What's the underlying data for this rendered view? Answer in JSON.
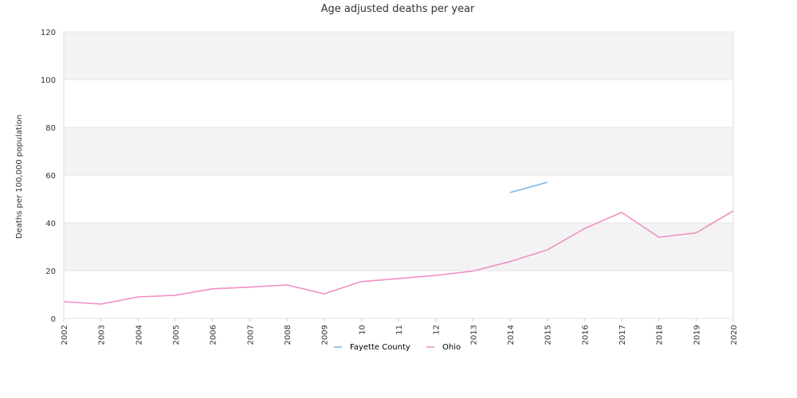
{
  "chart_data": {
    "type": "line",
    "title": "Age adjusted deaths per year",
    "xlabel": "",
    "ylabel": "Deaths per 100,000 population",
    "ylim": [
      0,
      120
    ],
    "yticks": [
      0,
      20,
      40,
      60,
      80,
      100,
      120
    ],
    "grid": "alternating horizontal bands",
    "legend_position": "bottom-center",
    "categories": [
      "2002",
      "2003",
      "2004",
      "2005",
      "2006",
      "2007",
      "2008",
      "2009",
      "10",
      "11",
      "12",
      "2013",
      "2014",
      "2015",
      "2016",
      "2017",
      "2018",
      "2019",
      "2020"
    ],
    "series": [
      {
        "name": "Fayette County",
        "color": "#7cb5ec",
        "values": [
          null,
          null,
          null,
          null,
          null,
          null,
          null,
          null,
          null,
          null,
          null,
          null,
          52.7,
          57.0,
          null,
          null,
          null,
          null,
          null
        ]
      },
      {
        "name": "Ohio",
        "color": "#f28fc4",
        "values": [
          7.0,
          6.0,
          9.0,
          9.7,
          12.4,
          13.1,
          14.0,
          10.3,
          15.4,
          16.7,
          18.0,
          19.8,
          23.8,
          28.7,
          37.6,
          44.4,
          34.0,
          35.8,
          45.0
        ]
      }
    ]
  }
}
